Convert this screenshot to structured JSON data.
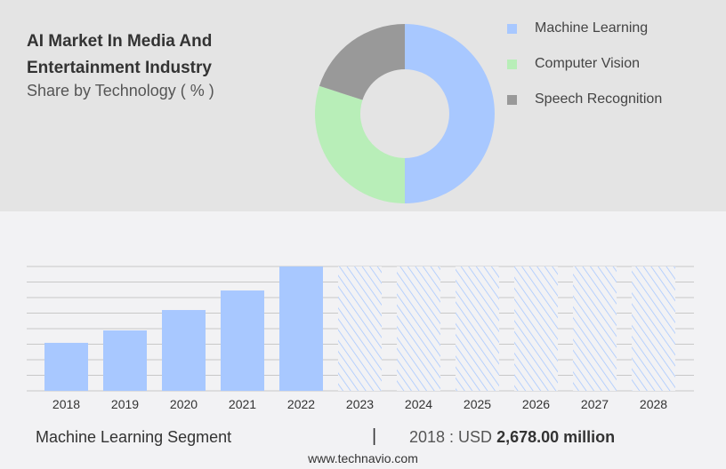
{
  "chart_data": [
    {
      "type": "pie",
      "donut": true,
      "title": "AI Market In Media And Entertainment Industry",
      "subtitle": "Share by Technology ( % )",
      "labels": [
        "Machine Learning",
        "Computer Vision",
        "Speech Recognition"
      ],
      "values": [
        50,
        30,
        20
      ],
      "colors": [
        "#a8c8ff",
        "#b8eeb8",
        "#999999"
      ],
      "legend": "right"
    },
    {
      "type": "bar",
      "categories": [
        "2018",
        "2019",
        "2020",
        "2021",
        "2022",
        "2023",
        "2024",
        "2025",
        "2026",
        "2027",
        "2028"
      ],
      "values": [
        2678,
        3370,
        4510,
        5600,
        6940,
        null,
        null,
        null,
        null,
        null,
        null
      ],
      "forecast": [
        false,
        false,
        false,
        false,
        false,
        true,
        true,
        true,
        true,
        true,
        true
      ],
      "color": "#a8c8ff",
      "ylim": [
        0,
        6940
      ],
      "grid": true
    }
  ],
  "footer": {
    "segment": "Machine Learning Segment",
    "separator": "|",
    "year_label": "2018 : USD",
    "value": "2,678.00 million",
    "site": "www.technavio.com"
  }
}
